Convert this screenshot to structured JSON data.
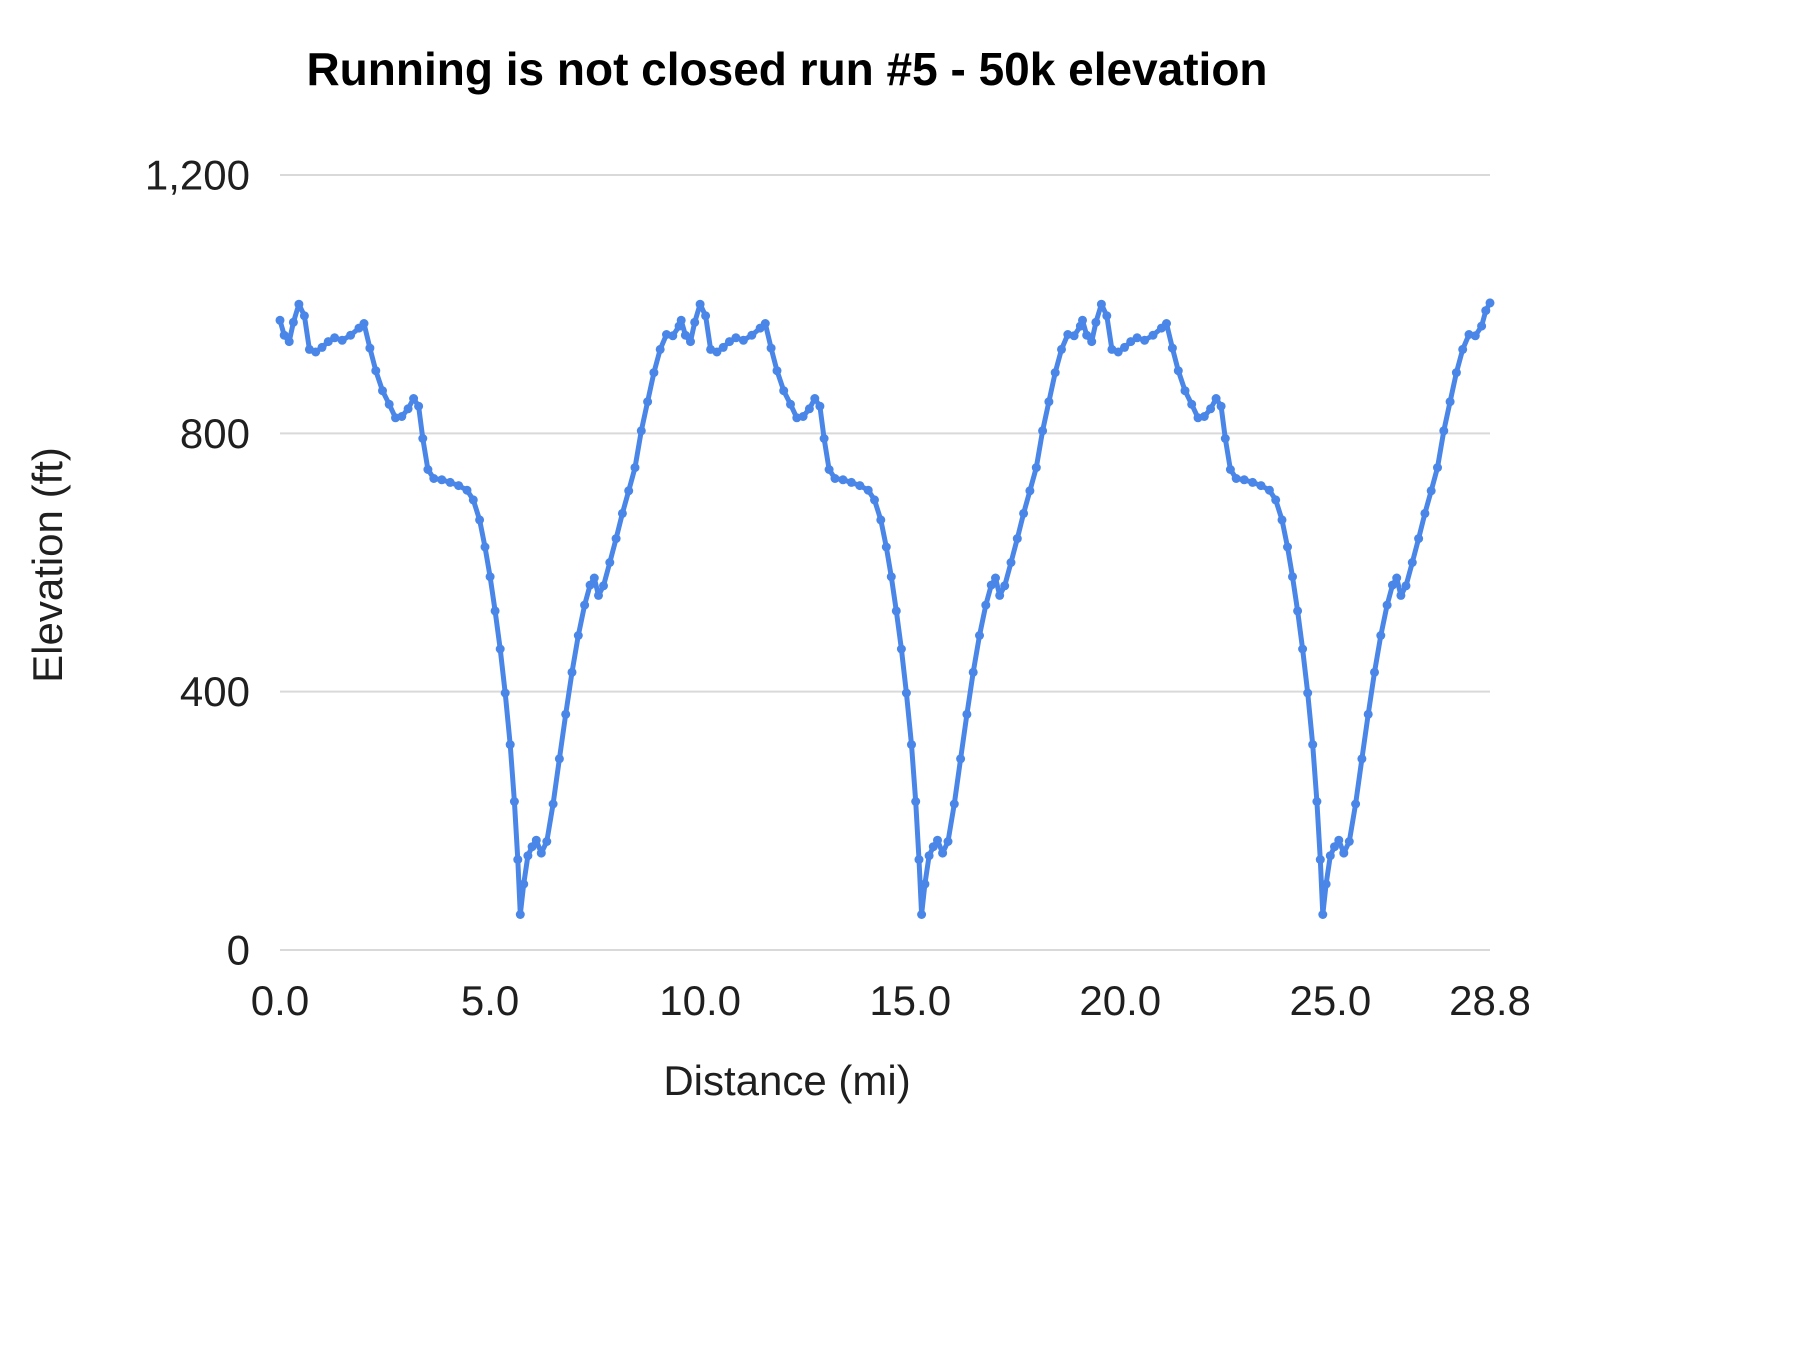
{
  "page": {
    "background": "#ffffff"
  },
  "chart_data": {
    "type": "line",
    "title": "Running is not closed run #5 - 50k elevation",
    "xlabel": "Distance (mi)",
    "ylabel": "Elevation (ft)",
    "xlim": [
      0,
      28.8
    ],
    "ylim": [
      0,
      1200
    ],
    "grid": "horizontal",
    "legend": "none",
    "line_color": "#4a86e8",
    "gridline_color": "#d9d9d9",
    "text_color": "#1f1f1f",
    "title_color": "#000000",
    "x_ticks": [
      {
        "v": 0.0,
        "label": "0.0"
      },
      {
        "v": 5.0,
        "label": "5.0"
      },
      {
        "v": 10.0,
        "label": "10.0"
      },
      {
        "v": 15.0,
        "label": "15.0"
      },
      {
        "v": 20.0,
        "label": "20.0"
      },
      {
        "v": 25.0,
        "label": "25.0"
      },
      {
        "v": 28.8,
        "label": "28.8"
      }
    ],
    "y_ticks": [
      {
        "v": 0,
        "label": "0"
      },
      {
        "v": 400,
        "label": "400"
      },
      {
        "v": 800,
        "label": "800"
      },
      {
        "v": 1200,
        "label": "1,200"
      }
    ],
    "series": [
      {
        "name": "Elevation (ft)",
        "color": "#4a86e8",
        "points": [
          [
            0.0,
            975
          ],
          [
            0.1,
            952
          ],
          [
            0.22,
            942
          ],
          [
            0.32,
            972
          ],
          [
            0.45,
            1000
          ],
          [
            0.58,
            982
          ],
          [
            0.7,
            930
          ],
          [
            0.85,
            926
          ],
          [
            1.0,
            933
          ],
          [
            1.15,
            942
          ],
          [
            1.3,
            948
          ],
          [
            1.48,
            944
          ],
          [
            1.68,
            952
          ],
          [
            1.88,
            963
          ],
          [
            2.0,
            970
          ],
          [
            2.14,
            932
          ],
          [
            2.28,
            897
          ],
          [
            2.44,
            866
          ],
          [
            2.6,
            845
          ],
          [
            2.75,
            824
          ],
          [
            2.9,
            826
          ],
          [
            3.05,
            838
          ],
          [
            3.18,
            854
          ],
          [
            3.3,
            842
          ],
          [
            3.4,
            792
          ],
          [
            3.52,
            744
          ],
          [
            3.66,
            730
          ],
          [
            3.85,
            728
          ],
          [
            4.05,
            724
          ],
          [
            4.25,
            719
          ],
          [
            4.45,
            712
          ],
          [
            4.6,
            697
          ],
          [
            4.75,
            666
          ],
          [
            4.88,
            624
          ],
          [
            5.0,
            578
          ],
          [
            5.12,
            525
          ],
          [
            5.24,
            466
          ],
          [
            5.36,
            398
          ],
          [
            5.48,
            318
          ],
          [
            5.58,
            230
          ],
          [
            5.66,
            140
          ],
          [
            5.72,
            55
          ],
          [
            5.8,
            102
          ],
          [
            5.9,
            146
          ],
          [
            6.0,
            160
          ],
          [
            6.1,
            170
          ],
          [
            6.22,
            150
          ],
          [
            6.35,
            168
          ],
          [
            6.5,
            226
          ],
          [
            6.65,
            296
          ],
          [
            6.8,
            365
          ],
          [
            6.95,
            430
          ],
          [
            7.1,
            487
          ],
          [
            7.25,
            534
          ],
          [
            7.38,
            565
          ],
          [
            7.48,
            576
          ],
          [
            7.58,
            549
          ],
          [
            7.7,
            564
          ],
          [
            7.85,
            600
          ],
          [
            8.0,
            637
          ],
          [
            8.15,
            676
          ],
          [
            8.3,
            711
          ],
          [
            8.45,
            747
          ],
          [
            8.6,
            804
          ],
          [
            8.75,
            849
          ],
          [
            8.9,
            894
          ],
          [
            9.05,
            930
          ],
          [
            9.2,
            953
          ],
          [
            9.35,
            951
          ],
          [
            9.5,
            966
          ],
          [
            9.55,
            975
          ],
          [
            9.65,
            952
          ],
          [
            9.77,
            942
          ],
          [
            9.87,
            972
          ],
          [
            10.0,
            1000
          ],
          [
            10.13,
            982
          ],
          [
            10.25,
            930
          ],
          [
            10.4,
            926
          ],
          [
            10.55,
            933
          ],
          [
            10.7,
            942
          ],
          [
            10.85,
            948
          ],
          [
            11.03,
            944
          ],
          [
            11.23,
            952
          ],
          [
            11.43,
            963
          ],
          [
            11.55,
            970
          ],
          [
            11.69,
            932
          ],
          [
            11.83,
            897
          ],
          [
            11.99,
            866
          ],
          [
            12.15,
            845
          ],
          [
            12.3,
            824
          ],
          [
            12.45,
            826
          ],
          [
            12.6,
            838
          ],
          [
            12.73,
            854
          ],
          [
            12.85,
            842
          ],
          [
            12.95,
            792
          ],
          [
            13.07,
            744
          ],
          [
            13.21,
            730
          ],
          [
            13.4,
            728
          ],
          [
            13.6,
            724
          ],
          [
            13.8,
            719
          ],
          [
            14.0,
            712
          ],
          [
            14.15,
            697
          ],
          [
            14.3,
            666
          ],
          [
            14.43,
            624
          ],
          [
            14.55,
            578
          ],
          [
            14.67,
            525
          ],
          [
            14.79,
            466
          ],
          [
            14.91,
            398
          ],
          [
            15.03,
            318
          ],
          [
            15.13,
            230
          ],
          [
            15.21,
            140
          ],
          [
            15.27,
            55
          ],
          [
            15.35,
            102
          ],
          [
            15.45,
            146
          ],
          [
            15.55,
            160
          ],
          [
            15.65,
            170
          ],
          [
            15.77,
            150
          ],
          [
            15.9,
            168
          ],
          [
            16.05,
            226
          ],
          [
            16.2,
            296
          ],
          [
            16.35,
            365
          ],
          [
            16.5,
            430
          ],
          [
            16.65,
            487
          ],
          [
            16.8,
            534
          ],
          [
            16.93,
            565
          ],
          [
            17.03,
            576
          ],
          [
            17.13,
            549
          ],
          [
            17.25,
            564
          ],
          [
            17.4,
            600
          ],
          [
            17.55,
            637
          ],
          [
            17.7,
            676
          ],
          [
            17.85,
            711
          ],
          [
            18.0,
            747
          ],
          [
            18.15,
            804
          ],
          [
            18.3,
            849
          ],
          [
            18.45,
            894
          ],
          [
            18.6,
            930
          ],
          [
            18.75,
            953
          ],
          [
            18.9,
            951
          ],
          [
            19.05,
            966
          ],
          [
            19.1,
            975
          ],
          [
            19.2,
            952
          ],
          [
            19.32,
            942
          ],
          [
            19.42,
            972
          ],
          [
            19.55,
            1000
          ],
          [
            19.68,
            982
          ],
          [
            19.8,
            930
          ],
          [
            19.95,
            926
          ],
          [
            20.1,
            933
          ],
          [
            20.25,
            942
          ],
          [
            20.4,
            948
          ],
          [
            20.58,
            944
          ],
          [
            20.78,
            952
          ],
          [
            20.98,
            963
          ],
          [
            21.1,
            970
          ],
          [
            21.24,
            932
          ],
          [
            21.38,
            897
          ],
          [
            21.54,
            866
          ],
          [
            21.7,
            845
          ],
          [
            21.85,
            824
          ],
          [
            22.0,
            826
          ],
          [
            22.15,
            838
          ],
          [
            22.28,
            854
          ],
          [
            22.4,
            842
          ],
          [
            22.5,
            792
          ],
          [
            22.62,
            744
          ],
          [
            22.76,
            730
          ],
          [
            22.95,
            728
          ],
          [
            23.15,
            724
          ],
          [
            23.35,
            719
          ],
          [
            23.55,
            712
          ],
          [
            23.7,
            697
          ],
          [
            23.85,
            666
          ],
          [
            23.98,
            624
          ],
          [
            24.1,
            578
          ],
          [
            24.22,
            525
          ],
          [
            24.34,
            466
          ],
          [
            24.46,
            398
          ],
          [
            24.58,
            318
          ],
          [
            24.68,
            230
          ],
          [
            24.76,
            140
          ],
          [
            24.82,
            55
          ],
          [
            24.9,
            102
          ],
          [
            25.0,
            146
          ],
          [
            25.1,
            160
          ],
          [
            25.2,
            170
          ],
          [
            25.32,
            150
          ],
          [
            25.45,
            168
          ],
          [
            25.6,
            226
          ],
          [
            25.75,
            296
          ],
          [
            25.9,
            365
          ],
          [
            26.05,
            430
          ],
          [
            26.2,
            487
          ],
          [
            26.35,
            534
          ],
          [
            26.48,
            565
          ],
          [
            26.58,
            576
          ],
          [
            26.68,
            549
          ],
          [
            26.8,
            564
          ],
          [
            26.95,
            600
          ],
          [
            27.1,
            637
          ],
          [
            27.25,
            676
          ],
          [
            27.4,
            711
          ],
          [
            27.55,
            747
          ],
          [
            27.7,
            804
          ],
          [
            27.85,
            849
          ],
          [
            28.0,
            894
          ],
          [
            28.15,
            930
          ],
          [
            28.3,
            953
          ],
          [
            28.45,
            951
          ],
          [
            28.6,
            966
          ],
          [
            28.7,
            990
          ],
          [
            28.8,
            1002
          ]
        ]
      }
    ]
  }
}
